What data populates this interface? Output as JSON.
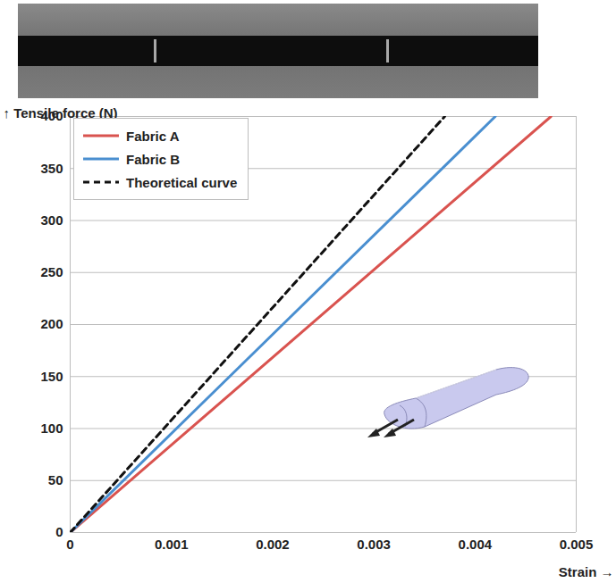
{
  "chart_data": {
    "type": "line",
    "x_label": "Strain",
    "y_label": "Tensile force (N)",
    "xlim": [
      0,
      0.005
    ],
    "xticks": [
      0,
      0.001,
      0.002,
      0.003,
      0.004,
      0.005
    ],
    "ylim": [
      0,
      400
    ],
    "yticks": [
      0,
      50,
      100,
      150,
      200,
      250,
      300,
      350,
      400
    ],
    "grid": "y",
    "legend": "top-left",
    "series": [
      {
        "name": "Fabric A",
        "color": "#d9534f",
        "line_style": "solid",
        "x": [
          0,
          0.00475
        ],
        "values": [
          0,
          400
        ]
      },
      {
        "name": "Fabric B",
        "color": "#4a8fd0",
        "line_style": "solid",
        "x": [
          0,
          0.0042
        ],
        "values": [
          0,
          400
        ]
      },
      {
        "name": "Theoretical curve",
        "color": "#111111",
        "line_style": "dashed",
        "x": [
          0,
          0.0037
        ],
        "values": [
          0,
          400
        ]
      }
    ]
  }
}
